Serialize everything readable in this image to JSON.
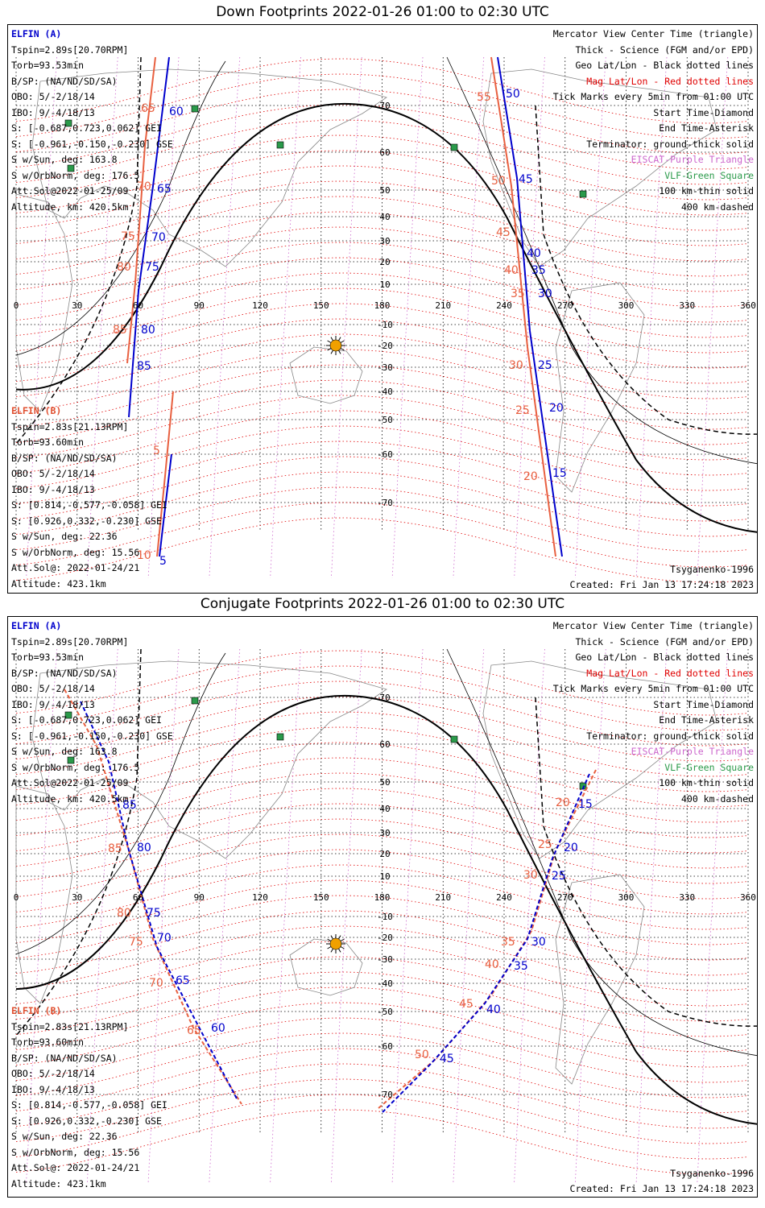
{
  "panels": [
    {
      "title": "Down Footprints 2022-01-26 01:00 to 02:30 UTC",
      "elfin_a": {
        "name": "ELFIN (A)",
        "lines": [
          "Tspin=2.89s[20.70RPM]",
          "Torb=93.53min",
          "B/SP: (NA/ND/SD/SA)",
          "OBO: 5/-2/18/14",
          "IBO: 9/-4/18/13",
          "S: [-0.687,0.723,0.062] GEI",
          "S: [-0.961,-0.150,-0.230] GSE",
          "S w/Sun, deg: 163.8",
          "S w/OrbNorm, deg: 176.5",
          "Att.Sol@2022-01-25/09",
          "Altitude, km: 420.5km"
        ]
      },
      "elfin_b": {
        "name": "ELFIN (B)",
        "lines": [
          "Tspin=2.83s[21.13RPM]",
          "Torb=93.60min",
          "B/SP: (NA/ND/SD/SA)",
          "OBO: 5/-2/18/14",
          "IBO: 9/-4/18/13",
          "S: [0.814,-0.577,-0.058] GEI",
          "S: [0.926,0.332,-0.230] GSE",
          "S w/Sun, deg: 22.36",
          "S w/OrbNorm, deg: 15.56",
          "Att.Sol@: 2022-01-24/21",
          "Altitude: 423.1km"
        ]
      },
      "legend": [
        {
          "text": "Mercator View Center Time (triangle)",
          "color": "#000000"
        },
        {
          "text": "Thick - Science (FGM and/or EPD)",
          "color": "#000000"
        },
        {
          "text": "Geo Lat/Lon - Black dotted lines",
          "color": "#000000"
        },
        {
          "text": "Mag Lat/Lon - Red dotted lines",
          "color": "#e00000"
        },
        {
          "text": "Tick Marks every 5min from 01:00 UTC",
          "color": "#000000"
        },
        {
          "text": "Start Time-Diamond",
          "color": "#000000"
        },
        {
          "text": "End Time-Asterisk",
          "color": "#000000"
        },
        {
          "text": "Terminator: ground-thick solid",
          "color": "#000000"
        },
        {
          "text": "EISCAT-Purple Triangle",
          "color": "#cc66cc"
        },
        {
          "text": "VLF-Green Square",
          "color": "#2a9a4a"
        },
        {
          "text": "100 km-thin solid",
          "color": "#000000"
        },
        {
          "text": "400 km-dashed",
          "color": "#000000"
        }
      ],
      "model": "Tsyganenko-1996",
      "created": "Created: Fri Jan 13 17:24:18 2023",
      "track_a_labels": [
        "60",
        "65",
        "70",
        "75",
        "80",
        "85",
        "50",
        "45",
        "40",
        "35",
        "30",
        "25",
        "20",
        "15",
        "5"
      ],
      "track_b_labels": [
        "65",
        "70",
        "75",
        "80",
        "85",
        "55",
        "50",
        "45",
        "40",
        "35",
        "30",
        "25",
        "20",
        "5",
        "10"
      ]
    },
    {
      "title": "Conjugate Footprints 2022-01-26 01:00 to 02:30 UTC",
      "elfin_a": {
        "name": "ELFIN (A)",
        "lines": [
          "Tspin=2.89s[20.70RPM]",
          "Torb=93.53min",
          "B/SP: (NA/ND/SD/SA)",
          "OBO: 5/-2/18/14",
          "IBO: 9/-4/18/13",
          "S: [-0.687,0.723,0.062] GEI",
          "S: [-0.961,-0.150,-0.230] GSE",
          "S w/Sun, deg: 163.8",
          "S w/OrbNorm, deg: 176.5",
          "Att.Sol@2022-01-25/09",
          "Altitude, km: 420.5km"
        ]
      },
      "elfin_b": {
        "name": "ELFIN (B)",
        "lines": [
          "Tspin=2.83s[21.13RPM]",
          "Torb=93.60min",
          "B/SP: (NA/ND/SD/SA)",
          "OBO: 5/-2/18/14",
          "IBO: 9/-4/18/13",
          "S: [0.814,-0.577,-0.058] GEI",
          "S: [0.926,0.332,-0.230] GSE",
          "S w/Sun, deg: 22.36",
          "S w/OrbNorm, deg: 15.56",
          "Att.Sol@: 2022-01-24/21",
          "Altitude: 423.1km"
        ]
      },
      "legend": [
        {
          "text": "Mercator View Center Time (triangle)",
          "color": "#000000"
        },
        {
          "text": "Thick - Science (FGM and/or EPD)",
          "color": "#000000"
        },
        {
          "text": "Geo Lat/Lon - Black dotted lines",
          "color": "#000000"
        },
        {
          "text": "Mag Lat/Lon - Red dotted lines",
          "color": "#e00000"
        },
        {
          "text": "Tick Marks every 5min from 01:00 UTC",
          "color": "#000000"
        },
        {
          "text": "Start Time-Diamond",
          "color": "#000000"
        },
        {
          "text": "End Time-Asterisk",
          "color": "#000000"
        },
        {
          "text": "Terminator: ground-thick solid",
          "color": "#000000"
        },
        {
          "text": "EISCAT-Purple Triangle",
          "color": "#cc66cc"
        },
        {
          "text": "VLF-Green Square",
          "color": "#2a9a4a"
        },
        {
          "text": "100 km-thin solid",
          "color": "#000000"
        },
        {
          "text": "400 km-dashed",
          "color": "#000000"
        }
      ],
      "model": "Tsyganenko-1996",
      "created": "Created: Fri Jan 13 17:24:18 2023",
      "track_a_labels": [
        "85",
        "80",
        "75",
        "70",
        "65",
        "60",
        "15",
        "20",
        "25",
        "30",
        "35",
        "40",
        "45"
      ],
      "track_b_labels": [
        "85",
        "80",
        "75",
        "70",
        "65",
        "20",
        "25",
        "30",
        "35",
        "40",
        "45",
        "50"
      ]
    }
  ],
  "lon_ticks": [
    "0",
    "30",
    "60",
    "90",
    "120",
    "150",
    "180",
    "210",
    "240",
    "270",
    "300",
    "330",
    "360"
  ],
  "lat_ticks": [
    "70",
    "60",
    "50",
    "40",
    "30",
    "20",
    "10",
    "-10",
    "-20",
    "-30",
    "-40",
    "-50",
    "-60",
    "-70"
  ],
  "colors": {
    "elfin_a": "#0000cc",
    "elfin_b": "#e86040",
    "mag_grid": "#e00000",
    "eiscat": "#cc66cc",
    "vlf": "#2a9a4a",
    "sun": "#f0a000"
  }
}
